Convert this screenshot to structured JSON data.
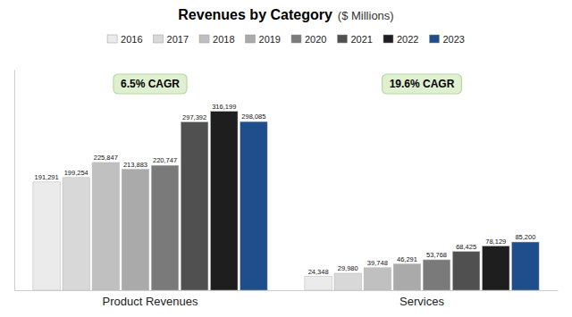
{
  "chart_data": {
    "type": "bar",
    "title": "Revenues by Category",
    "subtitle": "($ Millions)",
    "categories": [
      "Product Revenues",
      "Services"
    ],
    "series": [
      {
        "name": "2016",
        "color": "#ebebeb",
        "values": [
          191291,
          24348
        ],
        "value_labels": [
          "191,291",
          "24,348"
        ]
      },
      {
        "name": "2017",
        "color": "#d8d8d8",
        "values": [
          199254,
          29980
        ],
        "value_labels": [
          "199,254",
          "29,980"
        ]
      },
      {
        "name": "2018",
        "color": "#c0c0c0",
        "values": [
          225847,
          39748
        ],
        "value_labels": [
          "225,847",
          "39,748"
        ]
      },
      {
        "name": "2019",
        "color": "#aaaaaa",
        "values": [
          213883,
          46291
        ],
        "value_labels": [
          "213,883",
          "46,291"
        ]
      },
      {
        "name": "2020",
        "color": "#7a7a7a",
        "values": [
          220747,
          53768
        ],
        "value_labels": [
          "220,747",
          "53,768"
        ]
      },
      {
        "name": "2021",
        "color": "#505050",
        "values": [
          297392,
          68425
        ],
        "value_labels": [
          "297,392",
          "68,425"
        ]
      },
      {
        "name": "2022",
        "color": "#1e1e1e",
        "values": [
          316199,
          78129
        ],
        "value_labels": [
          "316,199",
          "78,129"
        ]
      },
      {
        "name": "2023",
        "color": "#1f4e8c",
        "values": [
          298085,
          85200
        ],
        "value_labels": [
          "298,085",
          "85,200"
        ]
      }
    ],
    "annotations": [
      "6.5% CAGR",
      "19.6% CAGR"
    ],
    "ylim": [
      0,
      390000
    ],
    "data_labels": true,
    "tick_labels": "x",
    "legend": "top",
    "grid": false
  }
}
